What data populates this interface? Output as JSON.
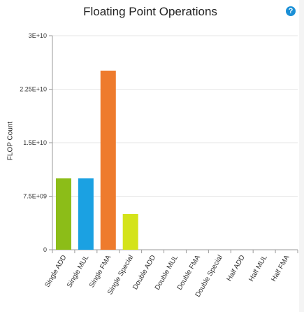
{
  "panel": {
    "title": "Floating Point Operations",
    "help_icon_glyph": "?"
  },
  "chart_data": {
    "type": "bar",
    "title": "Floating Point Operations",
    "ylabel": "FLOP Count",
    "xlabel": "",
    "ylim": [
      0,
      30000000000
    ],
    "yticks": [
      0,
      7500000000,
      15000000000,
      22500000000,
      30000000000
    ],
    "ytick_labels": [
      "0",
      "7.5E+09",
      "1.5E+10",
      "2.25E+10",
      "3E+10"
    ],
    "categories": [
      "Single ADD",
      "Single MUL",
      "Single FMA",
      "Single Special",
      "Double ADD",
      "Double MUL",
      "Double FMA",
      "Double Special",
      "Half ADD",
      "Half MUL",
      "Half FMA"
    ],
    "values": [
      10000000000,
      10000000000,
      25100000000,
      5000000000,
      0,
      0,
      0,
      0,
      0,
      0,
      0
    ],
    "colors": [
      "#8cbd18",
      "#1ba1e2",
      "#ee7b2d",
      "#d4e31a",
      "#999999",
      "#999999",
      "#999999",
      "#999999",
      "#999999",
      "#999999",
      "#999999"
    ],
    "grid": true,
    "legend": "none"
  }
}
